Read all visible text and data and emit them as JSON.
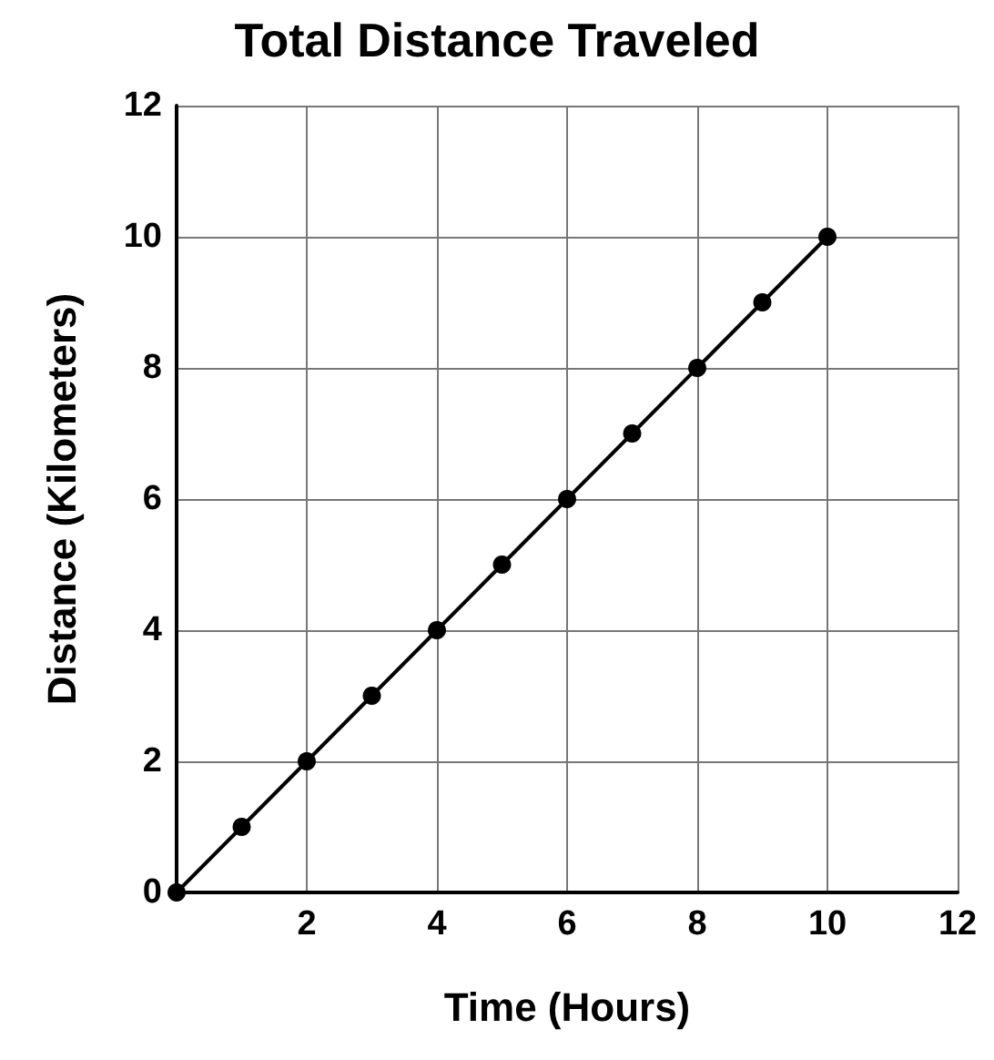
{
  "chart_data": {
    "type": "line",
    "title": "Total Distance Traveled",
    "xlabel": "Time (Hours)",
    "ylabel": "Distance (Kilometers)",
    "x": [
      0,
      1,
      2,
      3,
      4,
      5,
      6,
      7,
      8,
      9,
      10
    ],
    "series": [
      {
        "color": "#000000",
        "values": [
          0,
          1,
          2,
          3,
          4,
          5,
          6,
          7,
          8,
          9,
          10
        ]
      }
    ],
    "xlim": [
      0,
      12
    ],
    "xticks": [
      {
        "value": 0,
        "label": null
      },
      2,
      4,
      6,
      8,
      10,
      12
    ],
    "ylim": [
      0,
      12
    ],
    "yticks": [
      0,
      2,
      4,
      6,
      8,
      10,
      12
    ],
    "grid": true,
    "marker": "circle",
    "line_style": "solid"
  }
}
